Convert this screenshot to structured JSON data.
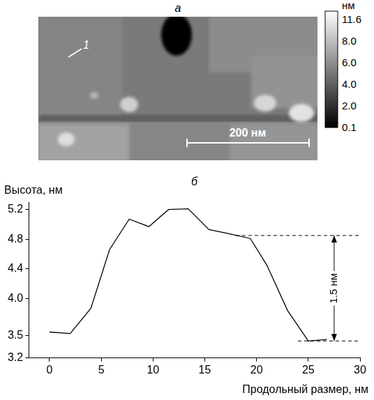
{
  "panel_a": {
    "title": "а",
    "marker_label": "1",
    "scale_bar": "200 нм",
    "color_bar": {
      "unit": "нм",
      "ticks": [
        11.6,
        {
          "value": 8,
          "label": "8.0"
        },
        {
          "value": 6,
          "label": "6.0"
        },
        {
          "value": 4,
          "label": "4.0"
        },
        {
          "value": 2,
          "label": "2.0"
        },
        0.1
      ]
    }
  },
  "chart_data": {
    "type": "line",
    "title": "б",
    "y_label": "Высота, нм",
    "x_label": "Продольный размер, нм",
    "x": [
      0,
      2,
      4,
      5.8,
      7.7,
      9.6,
      11.5,
      13.4,
      15.4,
      17.5,
      19.4,
      21,
      23,
      25,
      26.8
    ],
    "values": [
      3.55,
      3.53,
      3.87,
      4.66,
      5.07,
      4.97,
      5.2,
      5.21,
      4.93,
      4.87,
      4.81,
      4.45,
      3.84,
      3.43,
      3.45
    ],
    "color": "#000000",
    "xlim": [
      -2,
      30
    ],
    "xticks": [
      0,
      5,
      10,
      15,
      20,
      25,
      30
    ],
    "ylim": [
      3.2,
      5.3
    ],
    "yticks": [
      3.2,
      3.5,
      {
        "value": 4,
        "label": "4.0"
      },
      4.4,
      4.8,
      5.2
    ],
    "grid": false,
    "annotation": {
      "text": "1.5 нм",
      "x": 27.5,
      "y_low": 3.43,
      "y_high": 4.85,
      "lines_from_x": [
        18,
        24
      ]
    }
  }
}
